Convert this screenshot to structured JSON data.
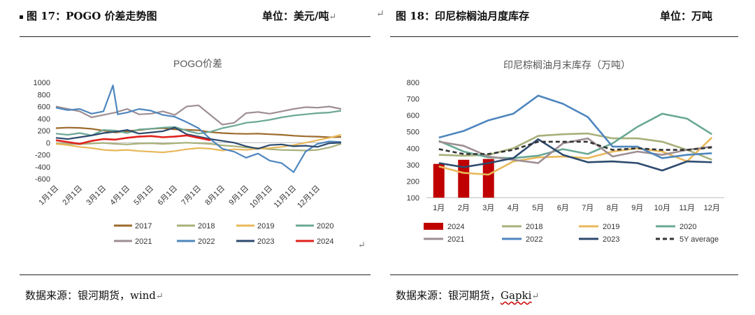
{
  "left": {
    "caption": "图 17：POGO 价差走势图",
    "unit": "单位：美元/吨",
    "source": "数据来源：银河期货，wind",
    "chart_data": {
      "type": "line",
      "title": "POGO价差",
      "ylim": [
        -600,
        1000
      ],
      "yticks": [
        1000,
        800,
        600,
        400,
        200,
        0,
        -200,
        -400,
        -600
      ],
      "categories": [
        "1月1日",
        "2月1日",
        "3月1日",
        "4月1日",
        "5月1日",
        "6月1日",
        "7月1日",
        "8月1日",
        "9月1日",
        "10月1日",
        "11月1日",
        "12月1日"
      ],
      "series": [
        {
          "name": "2017",
          "color": "#9c6a2a",
          "values": [
            [
              0,
              240
            ],
            [
              0.5,
              250
            ],
            [
              1,
              245
            ],
            [
              1.5,
              230
            ],
            [
              2,
              200
            ],
            [
              2.5,
              170
            ],
            [
              3,
              190
            ],
            [
              3.5,
              210
            ],
            [
              4,
              230
            ],
            [
              4.5,
              240
            ],
            [
              5,
              220
            ],
            [
              5.5,
              215
            ],
            [
              6,
              205
            ],
            [
              6.5,
              175
            ],
            [
              7,
              160
            ],
            [
              7.5,
              150
            ],
            [
              8,
              145
            ],
            [
              8.5,
              150
            ],
            [
              9,
              140
            ],
            [
              9.5,
              130
            ],
            [
              10,
              115
            ],
            [
              10.5,
              105
            ],
            [
              11,
              100
            ],
            [
              11.5,
              90
            ],
            [
              12,
              95
            ]
          ]
        },
        {
          "name": "2018",
          "color": "#a8b07a",
          "values": [
            [
              0,
              -10
            ],
            [
              0.5,
              -20
            ],
            [
              1,
              -25
            ],
            [
              1.5,
              -15
            ],
            [
              2,
              -5
            ],
            [
              2.5,
              -20
            ],
            [
              3,
              -30
            ],
            [
              3.5,
              -15
            ],
            [
              4,
              -10
            ],
            [
              4.5,
              -20
            ],
            [
              5,
              -10
            ],
            [
              5.5,
              0
            ],
            [
              6,
              -10
            ],
            [
              6.5,
              -20
            ],
            [
              7,
              -45
            ],
            [
              7.5,
              -60
            ],
            [
              8,
              -80
            ],
            [
              8.5,
              -90
            ],
            [
              9,
              -110
            ],
            [
              9.5,
              -120
            ],
            [
              10,
              -125
            ],
            [
              10.5,
              -130
            ],
            [
              11,
              -120
            ],
            [
              11.5,
              -80
            ],
            [
              12,
              -20
            ]
          ]
        },
        {
          "name": "2019",
          "color": "#e8b85a",
          "values": [
            [
              0,
              -20
            ],
            [
              0.5,
              -40
            ],
            [
              1,
              -70
            ],
            [
              1.5,
              -90
            ],
            [
              2,
              -120
            ],
            [
              2.5,
              -130
            ],
            [
              3,
              -120
            ],
            [
              3.5,
              -140
            ],
            [
              4,
              -150
            ],
            [
              4.5,
              -160
            ],
            [
              5,
              -140
            ],
            [
              5.5,
              -110
            ],
            [
              6,
              -90
            ],
            [
              6.5,
              -100
            ],
            [
              7,
              -130
            ],
            [
              7.5,
              -110
            ],
            [
              8,
              -120
            ],
            [
              8.5,
              -100
            ],
            [
              9,
              -90
            ],
            [
              9.5,
              -70
            ],
            [
              10,
              -40
            ],
            [
              10.5,
              0
            ],
            [
              11,
              40
            ],
            [
              11.5,
              80
            ],
            [
              12,
              130
            ]
          ]
        },
        {
          "name": "2020",
          "color": "#6aa896",
          "values": [
            [
              0,
              150
            ],
            [
              0.5,
              130
            ],
            [
              1,
              160
            ],
            [
              1.5,
              120
            ],
            [
              2,
              210
            ],
            [
              2.5,
              200
            ],
            [
              3,
              160
            ],
            [
              3.5,
              220
            ],
            [
              4,
              230
            ],
            [
              4.5,
              250
            ],
            [
              5,
              260
            ],
            [
              5.5,
              200
            ],
            [
              6,
              150
            ],
            [
              6.5,
              180
            ],
            [
              7,
              240
            ],
            [
              7.5,
              280
            ],
            [
              8,
              330
            ],
            [
              8.5,
              350
            ],
            [
              9,
              380
            ],
            [
              9.5,
              420
            ],
            [
              10,
              450
            ],
            [
              10.5,
              470
            ],
            [
              11,
              490
            ],
            [
              11.5,
              500
            ],
            [
              12,
              530
            ]
          ]
        },
        {
          "name": "2021",
          "color": "#9e8e92",
          "values": [
            [
              0,
              600
            ],
            [
              0.5,
              560
            ],
            [
              1,
              520
            ],
            [
              1.5,
              420
            ],
            [
              2,
              460
            ],
            [
              2.5,
              500
            ],
            [
              3,
              560
            ],
            [
              3.5,
              470
            ],
            [
              4,
              480
            ],
            [
              4.5,
              520
            ],
            [
              5,
              460
            ],
            [
              5.5,
              600
            ],
            [
              6,
              620
            ],
            [
              6.5,
              460
            ],
            [
              7,
              300
            ],
            [
              7.5,
              330
            ],
            [
              8,
              490
            ],
            [
              8.5,
              510
            ],
            [
              9,
              480
            ],
            [
              9.5,
              520
            ],
            [
              10,
              560
            ],
            [
              10.5,
              590
            ],
            [
              11,
              580
            ],
            [
              11.5,
              600
            ],
            [
              12,
              560
            ]
          ]
        },
        {
          "name": "2022",
          "color": "#4e86be",
          "values": [
            [
              0,
              580
            ],
            [
              0.5,
              540
            ],
            [
              1,
              560
            ],
            [
              1.5,
              480
            ],
            [
              2,
              520
            ],
            [
              2.4,
              950
            ],
            [
              2.6,
              470
            ],
            [
              3,
              500
            ],
            [
              3.5,
              560
            ],
            [
              4,
              530
            ],
            [
              4.5,
              460
            ],
            [
              5,
              430
            ],
            [
              5.5,
              340
            ],
            [
              6,
              240
            ],
            [
              6.5,
              60
            ],
            [
              7,
              -100
            ],
            [
              7.5,
              -150
            ],
            [
              8,
              -250
            ],
            [
              8.5,
              -180
            ],
            [
              9,
              -300
            ],
            [
              9.5,
              -340
            ],
            [
              10,
              -490
            ],
            [
              10.5,
              -150
            ],
            [
              11,
              -20
            ],
            [
              11.5,
              20
            ],
            [
              12,
              10
            ]
          ]
        },
        {
          "name": "2023",
          "color": "#2c4a6e",
          "values": [
            [
              0,
              80
            ],
            [
              0.5,
              60
            ],
            [
              1,
              90
            ],
            [
              1.5,
              120
            ],
            [
              2,
              160
            ],
            [
              2.5,
              180
            ],
            [
              3,
              210
            ],
            [
              3.5,
              150
            ],
            [
              4,
              170
            ],
            [
              4.5,
              190
            ],
            [
              5,
              250
            ],
            [
              5.5,
              140
            ],
            [
              6,
              100
            ],
            [
              6.5,
              60
            ],
            [
              7,
              30
            ],
            [
              7.5,
              0
            ],
            [
              8,
              -60
            ],
            [
              8.5,
              -100
            ],
            [
              9,
              -40
            ],
            [
              9.5,
              -30
            ],
            [
              10,
              -60
            ],
            [
              10.5,
              -50
            ],
            [
              11,
              -70
            ],
            [
              11.5,
              -10
            ],
            [
              12,
              0
            ]
          ]
        },
        {
          "name": "2024",
          "color": "#e0201c",
          "values": [
            [
              0,
              40
            ],
            [
              0.5,
              10
            ],
            [
              1,
              -20
            ],
            [
              1.5,
              30
            ],
            [
              2,
              60
            ],
            [
              2.5,
              50
            ],
            [
              3,
              80
            ],
            [
              3.5,
              100
            ],
            [
              4,
              110
            ],
            [
              4.5,
              90
            ],
            [
              5,
              100
            ],
            [
              5.5,
              120
            ],
            [
              6,
              80
            ],
            [
              6.5,
              40
            ]
          ]
        }
      ]
    }
  },
  "right": {
    "caption": "图 18：印尼棕榈油月度库存",
    "unit": "单位：万吨",
    "source": "数据来源：银河期货，",
    "source_tail": "Gapki",
    "chart_data": {
      "type": "line",
      "title": "印尼棕榈油月末库存（万吨）",
      "ylim": [
        100,
        800
      ],
      "yticks": [
        800,
        700,
        600,
        500,
        400,
        300,
        200,
        100
      ],
      "categories": [
        "1月",
        "2月",
        "3月",
        "4月",
        "5月",
        "6月",
        "7月",
        "8月",
        "9月",
        "10月",
        "11月",
        "12月"
      ],
      "bars": {
        "name": "2024",
        "color": "#c00000",
        "values": [
          305,
          330,
          335
        ]
      },
      "series": [
        {
          "name": "2018",
          "color": "#a8b07a",
          "dash": "",
          "values": [
            360,
            355,
            360,
            400,
            475,
            485,
            490,
            460,
            460,
            440,
            390,
            330
          ]
        },
        {
          "name": "2019",
          "color": "#e8b85a",
          "dash": "",
          "values": [
            290,
            250,
            240,
            320,
            345,
            350,
            340,
            380,
            400,
            380,
            320,
            465
          ]
        },
        {
          "name": "2020",
          "color": "#6aa896",
          "dash": "",
          "values": [
            445,
            380,
            345,
            340,
            355,
            395,
            365,
            430,
            530,
            610,
            580,
            485
          ]
        },
        {
          "name": "2021",
          "color": "#9e8e92",
          "dash": "",
          "values": [
            440,
            415,
            350,
            330,
            310,
            430,
            460,
            350,
            380,
            360,
            390,
            410
          ]
        },
        {
          "name": "2022",
          "color": "#4e86be",
          "dash": "",
          "values": [
            465,
            505,
            570,
            610,
            720,
            670,
            590,
            410,
            410,
            340,
            360,
            370
          ]
        },
        {
          "name": "2023",
          "color": "#2c4a6e",
          "dash": "",
          "values": [
            310,
            285,
            310,
            340,
            455,
            360,
            315,
            320,
            310,
            265,
            320,
            315
          ]
        },
        {
          "name": "5Y average",
          "color": "#333333",
          "dash": "6,4",
          "values": [
            395,
            365,
            365,
            390,
            440,
            440,
            440,
            390,
            400,
            390,
            390,
            405
          ]
        }
      ]
    }
  }
}
